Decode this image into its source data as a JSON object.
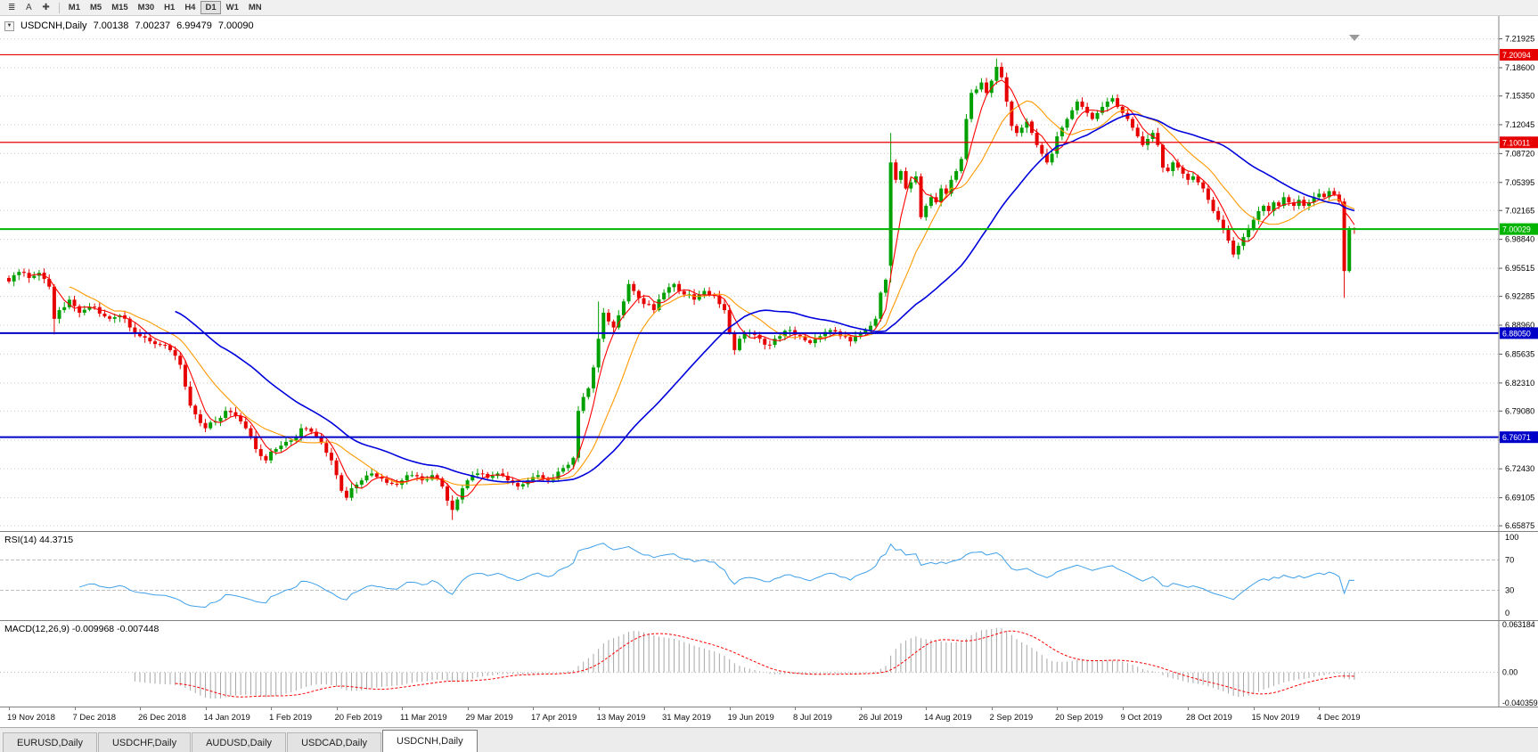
{
  "toolbar": {
    "icon_buttons": [
      {
        "name": "charts-list-icon",
        "glyph": "≣"
      },
      {
        "name": "text-tool-button",
        "glyph": "A"
      },
      {
        "name": "crosshair-icon",
        "glyph": "✚"
      }
    ],
    "timeframes": [
      "M1",
      "M5",
      "M15",
      "M30",
      "H1",
      "H4",
      "D1",
      "W1",
      "MN"
    ],
    "active_timeframe": "D1"
  },
  "chart": {
    "symbol_label": "USDCNH,Daily",
    "ohlc": {
      "open": "7.00138",
      "high": "7.00237",
      "low": "6.99479",
      "close": "7.00090"
    },
    "price_ticks": [
      "7.21925",
      "7.18600",
      "7.15350",
      "7.12045",
      "7.08720",
      "7.05395",
      "7.02165",
      "6.98840",
      "6.95515",
      "6.92285",
      "6.88960",
      "6.85635",
      "6.82310",
      "6.79080",
      "6.75755",
      "6.72430",
      "6.69105",
      "6.65875"
    ],
    "hlines": [
      {
        "price": 7.20094,
        "label": "7.20094",
        "color": "#e60000",
        "w": 1.2
      },
      {
        "price": 7.10011,
        "label": "7.10011",
        "color": "#e60000",
        "w": 1.2
      },
      {
        "price": 7.00029,
        "label": "7.00029",
        "color": "#00b400",
        "w": 2
      },
      {
        "price": 6.8805,
        "label": "6.88050",
        "color": "#0000c8",
        "w": 2
      },
      {
        "price": 6.76071,
        "label": "6.76071",
        "color": "#0000c8",
        "w": 2
      }
    ],
    "dates": [
      "19 Nov 2018",
      "7 Dec 2018",
      "26 Dec 2018",
      "14 Jan 2019",
      "1 Feb 2019",
      "20 Feb 2019",
      "11 Mar 2019",
      "29 Mar 2019",
      "17 Apr 2019",
      "13 May 2019",
      "31 May 2019",
      "19 Jun 2019",
      "8 Jul 2019",
      "26 Jul 2019",
      "14 Aug 2019",
      "2 Sep 2019",
      "20 Sep 2019",
      "9 Oct 2019",
      "28 Oct 2019",
      "15 Nov 2019",
      "4 Dec 2019"
    ]
  },
  "rsi": {
    "label": "RSI(14) 44.3715",
    "levels": [
      "100",
      "70",
      "30",
      "0"
    ]
  },
  "macd": {
    "label": "MACD(12,26,9) -0.009968 -0.007448",
    "axis": [
      "0.063184",
      "0.00",
      "-0.040359"
    ]
  },
  "tabs": [
    "EURUSD,Daily",
    "USDCHF,Daily",
    "AUDUSD,Daily",
    "USDCAD,Daily",
    "USDCNH,Daily"
  ],
  "active_tab": "USDCNH,Daily",
  "colors": {
    "up": "#00a000",
    "down": "#e60000",
    "grid": "#c8c8c8",
    "rsi": "#3e9fe8",
    "rsi_level": "#c0c0c0",
    "macd_hist": "#a6a6a6",
    "macd_signal": "#ff0000"
  },
  "chart_data": {
    "type": "candlestick",
    "symbol": "USDCNH",
    "timeframe": "Daily",
    "candles": 268,
    "y_range": [
      6.65,
      7.225
    ],
    "moving_averages": [
      {
        "period": 13,
        "color": "#ff9900",
        "width": 1.1
      },
      {
        "period": 5,
        "color": "#ff0000",
        "width": 1.1
      },
      {
        "period": 34,
        "color": "#0000dd",
        "width": 1.6
      }
    ],
    "indicators": {
      "rsi_period": 14,
      "macd": [
        12,
        26,
        9
      ]
    },
    "close_waypoints": [
      [
        0,
        6.94
      ],
      [
        2,
        6.951
      ],
      [
        4,
        6.944
      ],
      [
        6,
        6.95
      ],
      [
        8,
        6.934
      ],
      [
        9,
        6.897
      ],
      [
        10,
        6.907
      ],
      [
        12,
        6.919
      ],
      [
        14,
        6.904
      ],
      [
        16,
        6.911
      ],
      [
        18,
        6.903
      ],
      [
        20,
        6.897
      ],
      [
        22,
        6.901
      ],
      [
        24,
        6.887
      ],
      [
        26,
        6.877
      ],
      [
        28,
        6.871
      ],
      [
        30,
        6.867
      ],
      [
        32,
        6.861
      ],
      [
        34,
        6.844
      ],
      [
        35,
        6.819
      ],
      [
        36,
        6.797
      ],
      [
        37,
        6.787
      ],
      [
        39,
        6.771
      ],
      [
        41,
        6.779
      ],
      [
        43,
        6.791
      ],
      [
        45,
        6.785
      ],
      [
        47,
        6.771
      ],
      [
        49,
        6.747
      ],
      [
        51,
        6.734
      ],
      [
        52,
        6.744
      ],
      [
        54,
        6.751
      ],
      [
        56,
        6.757
      ],
      [
        58,
        6.771
      ],
      [
        60,
        6.767
      ],
      [
        62,
        6.754
      ],
      [
        64,
        6.734
      ],
      [
        65,
        6.717
      ],
      [
        66,
        6.699
      ],
      [
        67,
        6.691
      ],
      [
        68,
        6.702
      ],
      [
        70,
        6.711
      ],
      [
        72,
        6.719
      ],
      [
        74,
        6.713
      ],
      [
        76,
        6.707
      ],
      [
        78,
        6.711
      ],
      [
        80,
        6.717
      ],
      [
        82,
        6.711
      ],
      [
        84,
        6.717
      ],
      [
        86,
        6.704
      ],
      [
        88,
        6.677
      ],
      [
        89,
        6.689
      ],
      [
        91,
        6.711
      ],
      [
        93,
        6.719
      ],
      [
        95,
        6.714
      ],
      [
        97,
        6.719
      ],
      [
        99,
        6.711
      ],
      [
        101,
        6.704
      ],
      [
        103,
        6.711
      ],
      [
        105,
        6.717
      ],
      [
        107,
        6.711
      ],
      [
        109,
        6.721
      ],
      [
        111,
        6.729
      ],
      [
        112,
        6.737
      ],
      [
        113,
        6.791
      ],
      [
        114,
        6.807
      ],
      [
        115,
        6.817
      ],
      [
        116,
        6.841
      ],
      [
        117,
        6.874
      ],
      [
        118,
        6.904
      ],
      [
        119,
        6.894
      ],
      [
        120,
        6.887
      ],
      [
        121,
        6.901
      ],
      [
        122,
        6.917
      ],
      [
        123,
        6.937
      ],
      [
        124,
        6.929
      ],
      [
        126,
        6.914
      ],
      [
        128,
        6.907
      ],
      [
        130,
        6.927
      ],
      [
        132,
        6.937
      ],
      [
        134,
        6.925
      ],
      [
        136,
        6.919
      ],
      [
        138,
        6.929
      ],
      [
        140,
        6.924
      ],
      [
        142,
        6.907
      ],
      [
        143,
        6.881
      ],
      [
        144,
        6.861
      ],
      [
        145,
        6.874
      ],
      [
        147,
        6.881
      ],
      [
        149,
        6.874
      ],
      [
        151,
        6.867
      ],
      [
        153,
        6.877
      ],
      [
        155,
        6.884
      ],
      [
        157,
        6.877
      ],
      [
        159,
        6.869
      ],
      [
        161,
        6.877
      ],
      [
        163,
        6.884
      ],
      [
        165,
        6.877
      ],
      [
        167,
        6.871
      ],
      [
        169,
        6.881
      ],
      [
        171,
        6.889
      ],
      [
        172,
        6.897
      ],
      [
        173,
        6.927
      ],
      [
        174,
        6.942
      ],
      [
        175,
        7.077
      ],
      [
        176,
        7.057
      ],
      [
        177,
        7.067
      ],
      [
        178,
        7.047
      ],
      [
        179,
        7.054
      ],
      [
        180,
        7.061
      ],
      [
        181,
        7.014
      ],
      [
        182,
        7.027
      ],
      [
        183,
        7.037
      ],
      [
        184,
        7.031
      ],
      [
        185,
        7.047
      ],
      [
        186,
        7.041
      ],
      [
        187,
        7.057
      ],
      [
        188,
        7.067
      ],
      [
        189,
        7.081
      ],
      [
        190,
        7.127
      ],
      [
        191,
        7.157
      ],
      [
        192,
        7.161
      ],
      [
        193,
        7.169
      ],
      [
        194,
        7.157
      ],
      [
        195,
        7.171
      ],
      [
        196,
        7.187
      ],
      [
        197,
        7.175
      ],
      [
        198,
        7.147
      ],
      [
        199,
        7.119
      ],
      [
        200,
        7.111
      ],
      [
        201,
        7.117
      ],
      [
        202,
        7.124
      ],
      [
        203,
        7.111
      ],
      [
        204,
        7.097
      ],
      [
        205,
        7.087
      ],
      [
        206,
        7.077
      ],
      [
        207,
        7.087
      ],
      [
        208,
        7.107
      ],
      [
        209,
        7.117
      ],
      [
        210,
        7.127
      ],
      [
        211,
        7.137
      ],
      [
        212,
        7.147
      ],
      [
        213,
        7.141
      ],
      [
        214,
        7.134
      ],
      [
        215,
        7.127
      ],
      [
        216,
        7.134
      ],
      [
        217,
        7.141
      ],
      [
        218,
        7.147
      ],
      [
        219,
        7.151
      ],
      [
        220,
        7.141
      ],
      [
        221,
        7.134
      ],
      [
        222,
        7.127
      ],
      [
        223,
        7.117
      ],
      [
        224,
        7.107
      ],
      [
        225,
        7.097
      ],
      [
        226,
        7.104
      ],
      [
        227,
        7.111
      ],
      [
        228,
        7.097
      ],
      [
        229,
        7.071
      ],
      [
        230,
        7.067
      ],
      [
        231,
        7.077
      ],
      [
        232,
        7.071
      ],
      [
        233,
        7.064
      ],
      [
        234,
        7.057
      ],
      [
        235,
        7.061
      ],
      [
        236,
        7.054
      ],
      [
        237,
        7.047
      ],
      [
        238,
        7.034
      ],
      [
        239,
        7.021
      ],
      [
        240,
        7.011
      ],
      [
        241,
        7.001
      ],
      [
        242,
        6.987
      ],
      [
        243,
        6.971
      ],
      [
        244,
        6.981
      ],
      [
        245,
        6.991
      ],
      [
        246,
        7.001
      ],
      [
        247,
        7.011
      ],
      [
        248,
        7.021
      ],
      [
        249,
        7.027
      ],
      [
        250,
        7.021
      ],
      [
        251,
        7.031
      ],
      [
        252,
        7.027
      ],
      [
        253,
        7.037
      ],
      [
        254,
        7.031
      ],
      [
        255,
        7.027
      ],
      [
        256,
        7.034
      ],
      [
        257,
        7.027
      ],
      [
        258,
        7.031
      ],
      [
        259,
        7.037
      ],
      [
        260,
        7.041
      ],
      [
        261,
        7.037
      ],
      [
        262,
        7.044
      ],
      [
        263,
        7.04
      ],
      [
        264,
        7.032
      ],
      [
        265,
        6.952
      ],
      [
        266,
        7.0014
      ],
      [
        267,
        7.0009
      ]
    ],
    "overrides": {
      "9": {
        "l": 6.879
      },
      "67": {
        "l": 6.688
      },
      "88": {
        "l": 6.6655
      },
      "117": {
        "h": 6.917
      },
      "175": {
        "o": 6.958,
        "h": 7.111
      },
      "196": {
        "h": 7.1965
      },
      "265": {
        "l": 6.9211
      },
      "266": {
        "h": 7.0035
      },
      "267": {
        "o": 7.00138,
        "h": 7.00237,
        "l": 6.99479,
        "c": 7.0009
      }
    }
  }
}
